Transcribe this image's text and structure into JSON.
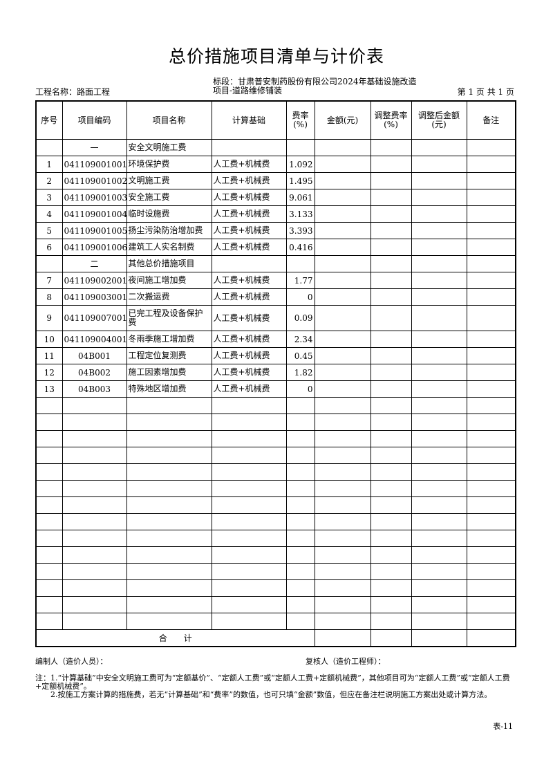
{
  "title": "总价措施项目清单与计价表",
  "project_name": "工程名称：路面工程",
  "section": "标段：甘肃普安制药股份有限公司2024年基础设施改造项目-道路维修铺装",
  "page_info": "第 1 页  共 1 页",
  "headers": [
    "序号",
    "项目编码",
    "项目名称",
    "计算基础",
    "费率(%)",
    "金额(元)",
    "调整费率(%)",
    "调整后金额(元)",
    "备注"
  ],
  "rows": [
    {
      "no": "",
      "code": "一",
      "name": "安全文明施工费",
      "basis": "",
      "rate": ""
    },
    {
      "no": "1",
      "code": "041109001001",
      "name": "环境保护费",
      "basis": "人工费+机械费",
      "rate": "1.092"
    },
    {
      "no": "2",
      "code": "041109001002",
      "name": "文明施工费",
      "basis": "人工费+机械费",
      "rate": "1.495"
    },
    {
      "no": "3",
      "code": "041109001003",
      "name": "安全施工费",
      "basis": "人工费+机械费",
      "rate": "9.061"
    },
    {
      "no": "4",
      "code": "041109001004",
      "name": "临时设施费",
      "basis": "人工费+机械费",
      "rate": "3.133"
    },
    {
      "no": "5",
      "code": "041109001005",
      "name": "扬尘污染防治增加费",
      "basis": "人工费+机械费",
      "rate": "3.393"
    },
    {
      "no": "6",
      "code": "041109001006",
      "name": "建筑工人实名制费",
      "basis": "人工费+机械费",
      "rate": "0.416"
    },
    {
      "no": "",
      "code": "二",
      "name": "其他总价措施项目",
      "basis": "",
      "rate": ""
    },
    {
      "no": "7",
      "code": "041109002001",
      "name": "夜间施工增加费",
      "basis": "人工费+机械费",
      "rate": "1.77"
    },
    {
      "no": "8",
      "code": "041109003001",
      "name": "二次搬运费",
      "basis": "人工费+机械费",
      "rate": "0"
    },
    {
      "no": "9",
      "code": "041109007001",
      "name": "已完工程及设备保护费",
      "basis": "人工费+机械费",
      "rate": "0.09"
    },
    {
      "no": "10",
      "code": "041109004001",
      "name": "冬雨季施工增加费",
      "basis": "人工费+机械费",
      "rate": "2.34"
    },
    {
      "no": "11",
      "code": "04B001",
      "name": "工程定位复测费",
      "basis": "人工费+机械费",
      "rate": "0.45"
    },
    {
      "no": "12",
      "code": "04B002",
      "name": "施工因素增加费",
      "basis": "人工费+机械费",
      "rate": "1.82"
    },
    {
      "no": "13",
      "code": "04B003",
      "name": "特殊地区增加费",
      "basis": "人工费+机械费",
      "rate": "0"
    }
  ],
  "total_label": "合　　计",
  "preparer": "编制人（造价人员）：",
  "reviewer": "复核人（造价工程师）：",
  "note1": "注：1.“计算基础”中安全文明施工费可为“定额基价”、“定额人工费”或“定额人工费+定额机械费”，其他项目可为“定额人工费”或“定额人工费+定额机械费”。",
  "note2": "　　2.按施工方案计算的措施费，若无“计算基础”和“费率”的数值，也可只填“金额”数值，但应在备注栏说明施工方案出处或计算方法。",
  "form_no": "表-11"
}
